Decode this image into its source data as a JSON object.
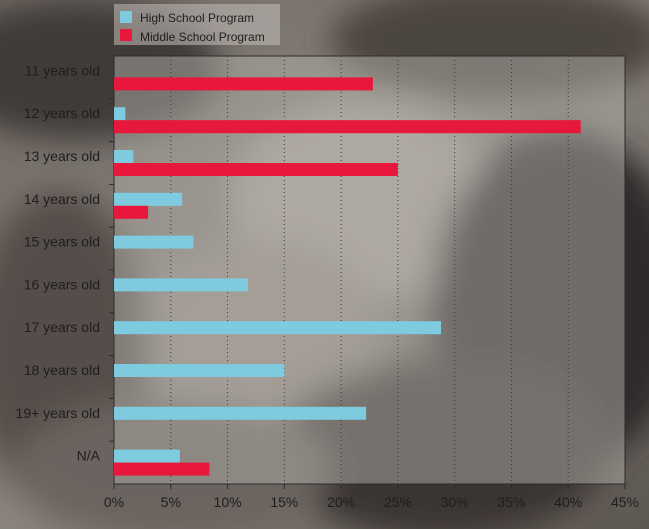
{
  "chart_data": {
    "type": "bar",
    "orientation": "horizontal",
    "title": "",
    "xlabel": "",
    "ylabel": "",
    "x_unit": "%",
    "xlim": [
      0,
      45
    ],
    "x_ticks": [
      "0%",
      "5%",
      "10%",
      "15%",
      "20%",
      "25%",
      "30%",
      "35%",
      "40%",
      "45%"
    ],
    "grid": "vertical dotted",
    "legend_position": "top-left",
    "categories": [
      "11 years old",
      "12 years old",
      "13 years old",
      "14 years old",
      "15 years old",
      "16 years old",
      "17 years old",
      "18 years old",
      "19+ years old",
      "N/A"
    ],
    "series": [
      {
        "name": "High School Program",
        "color": "#7ecbe0",
        "values": [
          null,
          1,
          1.7,
          6,
          7,
          11.8,
          28.8,
          15,
          22.2,
          5.8
        ]
      },
      {
        "name": "Middle School Program",
        "color": "#e8183c",
        "values": [
          22.8,
          41.1,
          25,
          3,
          null,
          null,
          null,
          null,
          null,
          8.4
        ]
      }
    ]
  }
}
